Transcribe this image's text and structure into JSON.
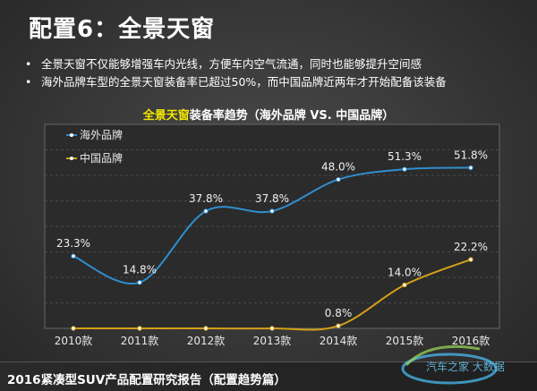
{
  "slide": {
    "title": "配置6：全景天窗",
    "bullets": [
      "全景天窗不仅能够增强车内光线，方便车内空气流通，同时也能够提升空间感",
      "海外品牌车型的全景天窗装备率已超过50%，而中国品牌近两年才开始配备该装备"
    ],
    "footer": "2016紧凑型SUV产品配置研究报告（配置趋势篇）",
    "watermark": "汽车之家 大数据"
  },
  "colors": {
    "title_highlight": "#f2e600",
    "overseas_line": "#2f8fd0",
    "china_line": "#d4a017",
    "plot_bg": "#2b2b2b",
    "grid": "#555555"
  },
  "chart_data": {
    "type": "line",
    "title_highlight": "全景天窗",
    "title_rest": "装备率趋势（海外品牌 VS. 中国品牌）",
    "categories": [
      "2010款",
      "2011款",
      "2012款",
      "2013款",
      "2014款",
      "2015款",
      "2016款"
    ],
    "series": [
      {
        "name": "海外品牌",
        "values": [
          23.3,
          14.8,
          37.8,
          37.8,
          48.0,
          51.3,
          51.8
        ],
        "labels": [
          "23.3%",
          "14.8%",
          "37.8%",
          "37.8%",
          "48.0%",
          "51.3%",
          "51.8%"
        ]
      },
      {
        "name": "中国品牌",
        "values": [
          0,
          0,
          0,
          0,
          0.8,
          14.0,
          22.2
        ],
        "labels": [
          "",
          "",
          "",
          "",
          "0.8%",
          "14.0%",
          "22.2%"
        ]
      }
    ],
    "ylim": [
      0,
      60
    ],
    "grid": true,
    "legend": "top-left",
    "line_style": "smooth"
  }
}
